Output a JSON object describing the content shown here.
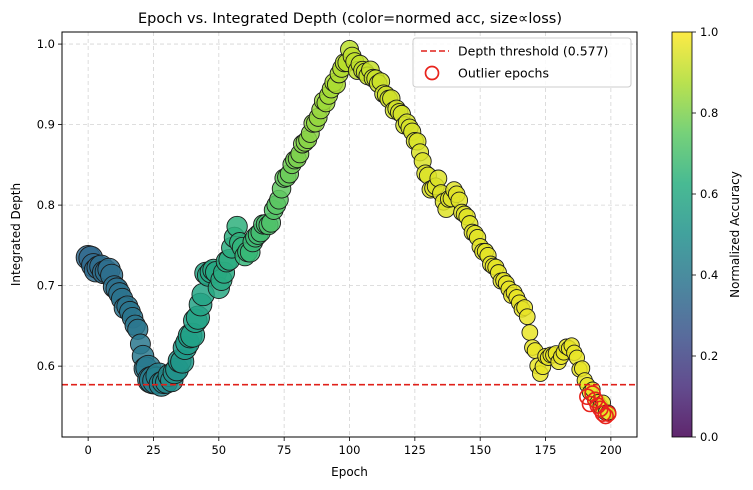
{
  "chart_data": {
    "type": "scatter",
    "title": "Epoch vs. Integrated Depth (color=normed acc, size∝loss)",
    "xlabel": "Epoch",
    "ylabel": "Integrated Depth",
    "xlim": [
      -10,
      210
    ],
    "ylim": [
      0.512,
      1.015
    ],
    "xticks": [
      "0",
      "25",
      "50",
      "75",
      "100",
      "125",
      "150",
      "175",
      "200"
    ],
    "yticks": [
      "0.6",
      "0.7",
      "0.8",
      "0.9",
      "1.0"
    ],
    "grid": true,
    "legend_placement": "top-right",
    "colorbar": {
      "label": "Normalized Accuracy",
      "range": [
        0,
        1
      ],
      "ticks": [
        "0.0",
        "0.2",
        "0.4",
        "0.6",
        "0.8",
        "1.0"
      ],
      "colormap": "viridis"
    },
    "threshold": {
      "label": "Depth threshold (0.577)",
      "value": 0.577,
      "color": "#e0201a"
    },
    "outliers_label": "Outlier epochs",
    "outlier_color": "#e8231c",
    "keypoints": {
      "depth": [
        [
          0,
          0.735
        ],
        [
          3,
          0.722
        ],
        [
          8,
          0.718
        ],
        [
          12,
          0.688
        ],
        [
          18,
          0.655
        ],
        [
          22,
          0.6
        ],
        [
          24,
          0.585
        ],
        [
          30,
          0.58
        ],
        [
          34,
          0.595
        ],
        [
          37,
          0.62
        ],
        [
          42,
          0.66
        ],
        [
          45,
          0.71
        ],
        [
          48,
          0.722
        ],
        [
          50,
          0.7
        ],
        [
          53,
          0.725
        ],
        [
          57,
          0.77
        ],
        [
          60,
          0.735
        ],
        [
          63,
          0.752
        ],
        [
          66,
          0.77
        ],
        [
          70,
          0.78
        ],
        [
          75,
          0.83
        ],
        [
          80,
          0.86
        ],
        [
          85,
          0.89
        ],
        [
          90,
          0.925
        ],
        [
          95,
          0.955
        ],
        [
          98,
          0.975
        ],
        [
          100,
          0.99
        ],
        [
          103,
          0.972
        ],
        [
          110,
          0.958
        ],
        [
          115,
          0.932
        ],
        [
          120,
          0.91
        ],
        [
          125,
          0.885
        ],
        [
          128,
          0.855
        ],
        [
          131,
          0.82
        ],
        [
          134,
          0.828
        ],
        [
          137,
          0.795
        ],
        [
          140,
          0.82
        ],
        [
          143,
          0.795
        ],
        [
          147,
          0.77
        ],
        [
          150,
          0.75
        ],
        [
          155,
          0.725
        ],
        [
          160,
          0.7
        ],
        [
          165,
          0.68
        ],
        [
          168,
          0.662
        ],
        [
          170,
          0.625
        ],
        [
          173,
          0.592
        ],
        [
          176,
          0.615
        ],
        [
          181,
          0.61
        ],
        [
          184,
          0.628
        ],
        [
          187,
          0.61
        ],
        [
          190,
          0.583
        ],
        [
          193,
          0.565
        ],
        [
          196,
          0.552
        ],
        [
          200,
          0.54
        ]
      ],
      "accuracy": [
        [
          0,
          0.34
        ],
        [
          10,
          0.37
        ],
        [
          20,
          0.4
        ],
        [
          25,
          0.42
        ],
        [
          30,
          0.47
        ],
        [
          40,
          0.57
        ],
        [
          50,
          0.6
        ],
        [
          55,
          0.62
        ],
        [
          60,
          0.66
        ],
        [
          70,
          0.72
        ],
        [
          80,
          0.8
        ],
        [
          90,
          0.85
        ],
        [
          100,
          0.9
        ],
        [
          115,
          0.93
        ],
        [
          130,
          0.95
        ],
        [
          150,
          0.96
        ],
        [
          170,
          0.97
        ],
        [
          200,
          0.97
        ]
      ],
      "size": [
        [
          0,
          12
        ],
        [
          20,
          10
        ],
        [
          25,
          14
        ],
        [
          30,
          11
        ],
        [
          40,
          12
        ],
        [
          45,
          11
        ],
        [
          60,
          10
        ],
        [
          80,
          9
        ],
        [
          100,
          9
        ],
        [
          130,
          8.5
        ],
        [
          160,
          8
        ],
        [
          200,
          7.5
        ]
      ]
    },
    "outlier_epochs": [
      191,
      192,
      193,
      194,
      195,
      196,
      197,
      198,
      199
    ],
    "outlier_depths": [
      0.562,
      0.553,
      0.566,
      0.558,
      0.551,
      0.547,
      0.541,
      0.538,
      0.541
    ]
  }
}
